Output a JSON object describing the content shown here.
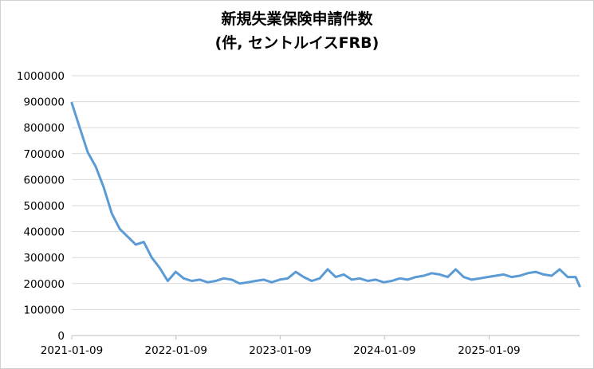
{
  "chart_data": {
    "type": "line",
    "title_line1": "新規失業保険申請件数",
    "title_line2": "(件, セントルイスFRB)",
    "y_ticks": [
      "0",
      "100000",
      "200000",
      "300000",
      "400000",
      "500000",
      "600000",
      "700000",
      "800000",
      "900000",
      "1000000"
    ],
    "x_ticks": [
      "2021-01-09",
      "2022-01-09",
      "2023-01-09",
      "2024-01-09",
      "2025-01-09"
    ],
    "ylim": [
      0,
      1000000
    ],
    "xlim": [
      "2021-01-09",
      "2025-11-22"
    ],
    "grid": "horizontal",
    "line_color": "#5b9bd5",
    "x": [
      "2021-01-09",
      "2021-02-06",
      "2021-03-06",
      "2021-04-03",
      "2021-05-01",
      "2021-05-29",
      "2021-06-26",
      "2021-07-24",
      "2021-08-21",
      "2021-09-18",
      "2021-10-16",
      "2021-11-13",
      "2021-12-11",
      "2022-01-08",
      "2022-02-05",
      "2022-03-05",
      "2022-04-02",
      "2022-04-30",
      "2022-05-28",
      "2022-06-25",
      "2022-07-23",
      "2022-08-20",
      "2022-09-17",
      "2022-10-15",
      "2022-11-12",
      "2022-12-10",
      "2023-01-07",
      "2023-02-04",
      "2023-03-04",
      "2023-04-01",
      "2023-04-29",
      "2023-05-27",
      "2023-06-24",
      "2023-07-22",
      "2023-08-19",
      "2023-09-16",
      "2023-10-14",
      "2023-11-11",
      "2023-12-09",
      "2024-01-06",
      "2024-02-03",
      "2024-03-02",
      "2024-03-30",
      "2024-04-27",
      "2024-05-25",
      "2024-06-22",
      "2024-07-20",
      "2024-08-17",
      "2024-09-14",
      "2024-10-12",
      "2024-11-09",
      "2024-12-07",
      "2025-01-04",
      "2025-02-01",
      "2025-03-01",
      "2025-03-29",
      "2025-04-26",
      "2025-05-24",
      "2025-06-21",
      "2025-07-19",
      "2025-08-16",
      "2025-09-13",
      "2025-10-11",
      "2025-11-08",
      "2025-11-22"
    ],
    "values": [
      895000,
      800000,
      705000,
      650000,
      570000,
      470000,
      410000,
      380000,
      350000,
      360000,
      300000,
      260000,
      210000,
      245000,
      220000,
      210000,
      215000,
      205000,
      210000,
      220000,
      215000,
      200000,
      205000,
      210000,
      215000,
      205000,
      215000,
      220000,
      245000,
      225000,
      210000,
      220000,
      255000,
      225000,
      235000,
      215000,
      220000,
      210000,
      215000,
      205000,
      210000,
      220000,
      215000,
      225000,
      230000,
      240000,
      235000,
      225000,
      255000,
      225000,
      215000,
      220000,
      225000,
      230000,
      235000,
      225000,
      230000,
      240000,
      245000,
      235000,
      230000,
      255000,
      225000,
      225000,
      190000
    ]
  }
}
